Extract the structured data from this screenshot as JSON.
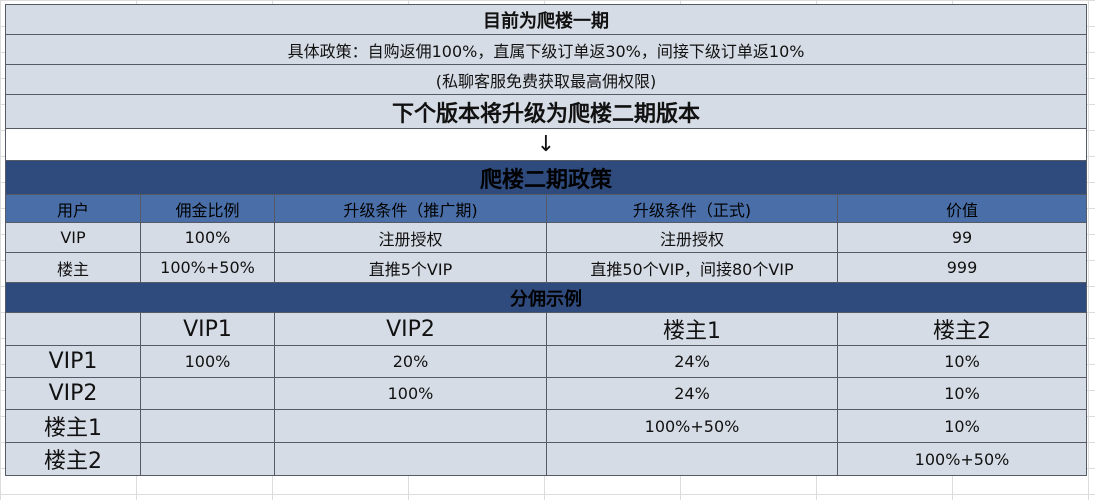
{
  "header": {
    "current_phase": "目前为爬楼一期",
    "policy": "具体政策：自购返佣100%，直属下级订单返30%，间接下级订单返10%",
    "contact": "(私聊客服免费获取最高佣权限)",
    "next_version": "下个版本将升级为爬楼二期版本",
    "arrow": "↓"
  },
  "policy_table": {
    "title": "爬楼二期政策",
    "columns": [
      "用户",
      "佣金比例",
      "升级条件（推广期)",
      "升级条件（正式)",
      "价值"
    ],
    "rows": [
      [
        "VIP",
        "100%",
        "注册授权",
        "注册授权",
        "99"
      ],
      [
        "楼主",
        "100%+50%",
        "直推5个VIP",
        "直推50个VIP，间接80个VIP",
        "999"
      ]
    ]
  },
  "split_table": {
    "title": "分佣示例",
    "columns": [
      "",
      "VIP1",
      "VIP2",
      "楼主1",
      "楼主2"
    ],
    "rows": [
      [
        "VIP1",
        "100%",
        "20%",
        "24%",
        "10%"
      ],
      [
        "VIP2",
        "",
        "100%",
        "24%",
        "10%"
      ],
      [
        "楼主1",
        "",
        "",
        "100%+50%",
        "10%"
      ],
      [
        "楼主2",
        "",
        "",
        "",
        "100%+50%"
      ]
    ]
  }
}
